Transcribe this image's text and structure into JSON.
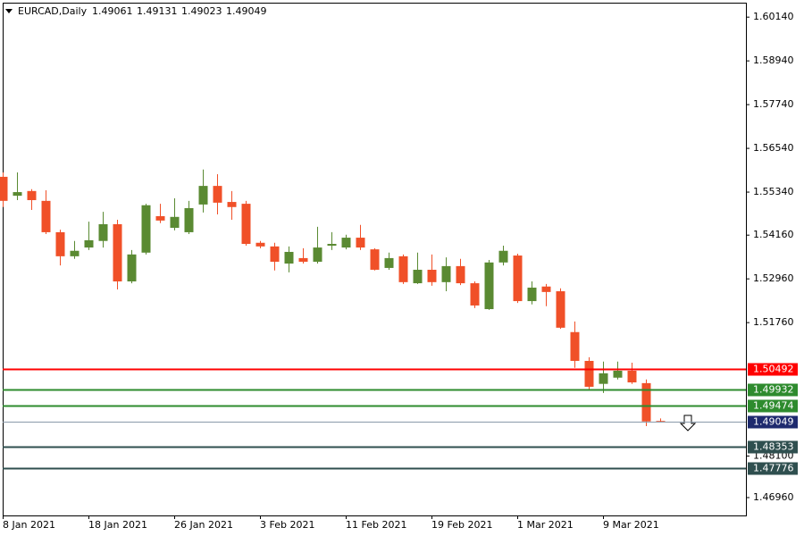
{
  "chart_data": {
    "type": "candlestick",
    "title": "EURCAD,Daily",
    "categories": [
      "8 Jan 2021",
      null,
      null,
      null,
      null,
      null,
      "18 Jan 2021",
      null,
      null,
      null,
      null,
      null,
      "26 Jan 2021",
      null,
      null,
      null,
      null,
      null,
      "3 Feb 2021",
      null,
      null,
      null,
      null,
      null,
      "11 Feb 2021",
      null,
      null,
      null,
      null,
      null,
      "19 Feb 2021",
      null,
      null,
      null,
      null,
      null,
      "1 Mar 2021",
      null,
      null,
      null,
      null,
      null,
      "9 Mar 2021",
      null,
      null,
      null,
      null
    ],
    "open": [
      1.5576,
      1.5524,
      1.5537,
      1.551,
      1.5424,
      1.5358,
      1.5382,
      1.54,
      1.5446,
      1.5289,
      1.5368,
      1.5468,
      1.5436,
      1.5424,
      1.55,
      1.5551,
      1.5507,
      1.5502,
      1.5395,
      1.5385,
      1.5338,
      1.5353,
      1.5343,
      1.5387,
      1.5382,
      1.5409,
      1.5377,
      1.5326,
      1.5358,
      1.5284,
      1.5321,
      1.5287,
      1.5331,
      1.5284,
      1.5213,
      1.5341,
      1.536,
      1.5235,
      1.5275,
      1.5262,
      1.515,
      1.5071,
      1.5008,
      1.5025,
      1.5044,
      1.501,
      1.49061
    ],
    "high": [
      1.5588,
      1.5588,
      1.5542,
      1.5539,
      1.5431,
      1.54,
      1.5453,
      1.548,
      1.5458,
      1.5375,
      1.5502,
      1.5502,
      1.5517,
      1.551,
      1.5596,
      1.5583,
      1.5537,
      1.551,
      1.54,
      1.5395,
      1.5385,
      1.538,
      1.5439,
      1.5424,
      1.5417,
      1.5444,
      1.538,
      1.5368,
      1.5363,
      1.5368,
      1.5363,
      1.5355,
      1.5351,
      1.5289,
      1.5348,
      1.5387,
      1.5365,
      1.5289,
      1.5282,
      1.527,
      1.5179,
      1.5081,
      1.5069,
      1.5069,
      1.5066,
      1.502,
      1.49131
    ],
    "low": [
      1.5493,
      1.5512,
      1.5485,
      1.5419,
      1.5333,
      1.5351,
      1.5375,
      1.5382,
      1.5267,
      1.5284,
      1.5363,
      1.5449,
      1.5429,
      1.5419,
      1.5478,
      1.5473,
      1.5458,
      1.5387,
      1.538,
      1.5319,
      1.5314,
      1.5338,
      1.5338,
      1.5375,
      1.5377,
      1.5375,
      1.5319,
      1.5321,
      1.5282,
      1.5282,
      1.5277,
      1.5262,
      1.5279,
      1.5216,
      1.5211,
      1.5333,
      1.523,
      1.5226,
      1.5221,
      1.5159,
      1.5052,
      1.4993,
      1.4983,
      1.502,
      1.5008,
      1.4892,
      1.49023
    ],
    "close": [
      1.551,
      1.5534,
      1.5512,
      1.5424,
      1.5358,
      1.5373,
      1.5402,
      1.5446,
      1.5289,
      1.5363,
      1.5498,
      1.5456,
      1.5466,
      1.549,
      1.5551,
      1.5505,
      1.5493,
      1.5392,
      1.5385,
      1.5343,
      1.537,
      1.5343,
      1.5382,
      1.5392,
      1.5409,
      1.5382,
      1.5321,
      1.5353,
      1.5287,
      1.5321,
      1.5287,
      1.5331,
      1.5284,
      1.5223,
      1.5341,
      1.5373,
      1.5235,
      1.5272,
      1.526,
      1.5162,
      1.5071,
      1.5,
      1.5037,
      1.5044,
      1.5012,
      1.4905,
      1.49049
    ],
    "up_color": "#5a8a32",
    "down_color": "#f05028",
    "ylim": [
      1.4647,
      1.6061
    ],
    "yticks": [
      {
        "value": 1.6014,
        "label": "1.60140"
      },
      {
        "value": 1.5894,
        "label": "1.58940"
      },
      {
        "value": 1.5774,
        "label": "1.57740"
      },
      {
        "value": 1.5654,
        "label": "1.56540"
      },
      {
        "value": 1.5534,
        "label": "1.55340"
      },
      {
        "value": 1.5416,
        "label": "1.54160"
      },
      {
        "value": 1.5296,
        "label": "1.52960"
      },
      {
        "value": 1.5176,
        "label": "1.51760"
      },
      {
        "value": 1.481,
        "label": "1.48100"
      },
      {
        "value": 1.4696,
        "label": "1.46960"
      }
    ],
    "levels": [
      {
        "value": 1.50492,
        "color": "#ff0000"
      },
      {
        "value": 1.49932,
        "color": "#2e8b2e"
      },
      {
        "value": 1.49474,
        "color": "#2e8b2e"
      },
      {
        "value": 1.49049,
        "color": "#1e2a6e"
      },
      {
        "value": 1.48353,
        "color": "#2f4f4f"
      },
      {
        "value": 1.47776,
        "color": "#2f4f4f"
      }
    ]
  }
}
